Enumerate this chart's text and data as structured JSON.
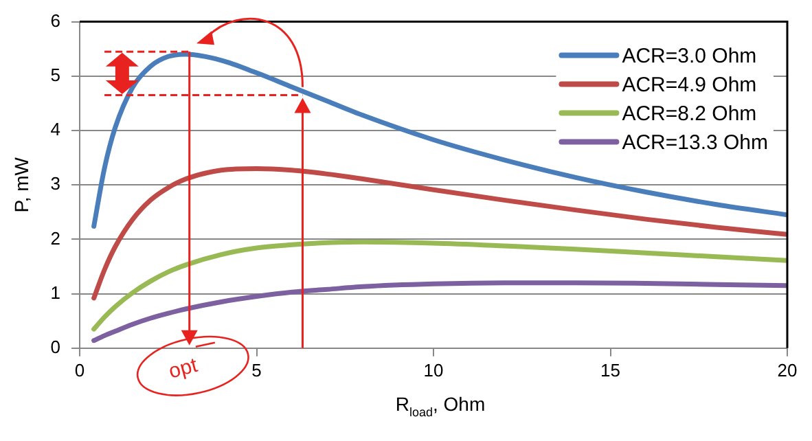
{
  "chart_data": {
    "type": "line",
    "xlabel": "R$_{load}$, Ohm",
    "ylabel": "P, mW",
    "x": [
      0.4,
      0.7,
      1,
      1.5,
      2,
      2.5,
      3,
      4,
      5,
      6,
      7,
      8,
      10,
      12,
      14,
      16,
      18,
      20
    ],
    "series": [
      {
        "name": "ACR=3.0 Ohm",
        "color": "#4a7ebb",
        "values": [
          2.24,
          3.31,
          4.05,
          4.8,
          5.18,
          5.36,
          5.4,
          5.29,
          5.06,
          4.8,
          4.54,
          4.28,
          3.83,
          3.46,
          3.14,
          2.87,
          2.64,
          2.45
        ]
      },
      {
        "name": "ACR=4.9 Ohm",
        "color": "#be4b48",
        "values": [
          0.92,
          1.44,
          1.86,
          2.37,
          2.72,
          2.95,
          3.11,
          3.27,
          3.3,
          3.27,
          3.2,
          3.11,
          2.91,
          2.72,
          2.54,
          2.37,
          2.22,
          2.09
        ]
      },
      {
        "name": "ACR=8.2 Ohm",
        "color": "#98b954",
        "values": [
          0.35,
          0.57,
          0.76,
          1.02,
          1.23,
          1.4,
          1.53,
          1.72,
          1.84,
          1.9,
          1.94,
          1.95,
          1.93,
          1.88,
          1.82,
          1.75,
          1.68,
          1.61
        ]
      },
      {
        "name": "ACR=13.3 Ohm",
        "color": "#7d60a0",
        "values": [
          0.14,
          0.23,
          0.31,
          0.44,
          0.55,
          0.64,
          0.72,
          0.85,
          0.95,
          1.03,
          1.08,
          1.13,
          1.18,
          1.2,
          1.2,
          1.19,
          1.17,
          1.15
        ]
      }
    ],
    "xlim": [
      0,
      20
    ],
    "xticks": [
      0,
      5,
      10,
      15,
      20
    ],
    "ylim": [
      0,
      6
    ],
    "yticks": [
      0,
      1,
      2,
      3,
      4,
      5,
      6
    ],
    "grid": "y",
    "legend": "top right",
    "marker": "none",
    "line_style": "solid",
    "ref_lines": [
      {
        "axis": "x",
        "value": 3.1,
        "color": "#e8231f"
      },
      {
        "axis": "x",
        "value": 6.3,
        "color": "#e8231f"
      }
    ],
    "annotations": [
      "opt"
    ]
  }
}
